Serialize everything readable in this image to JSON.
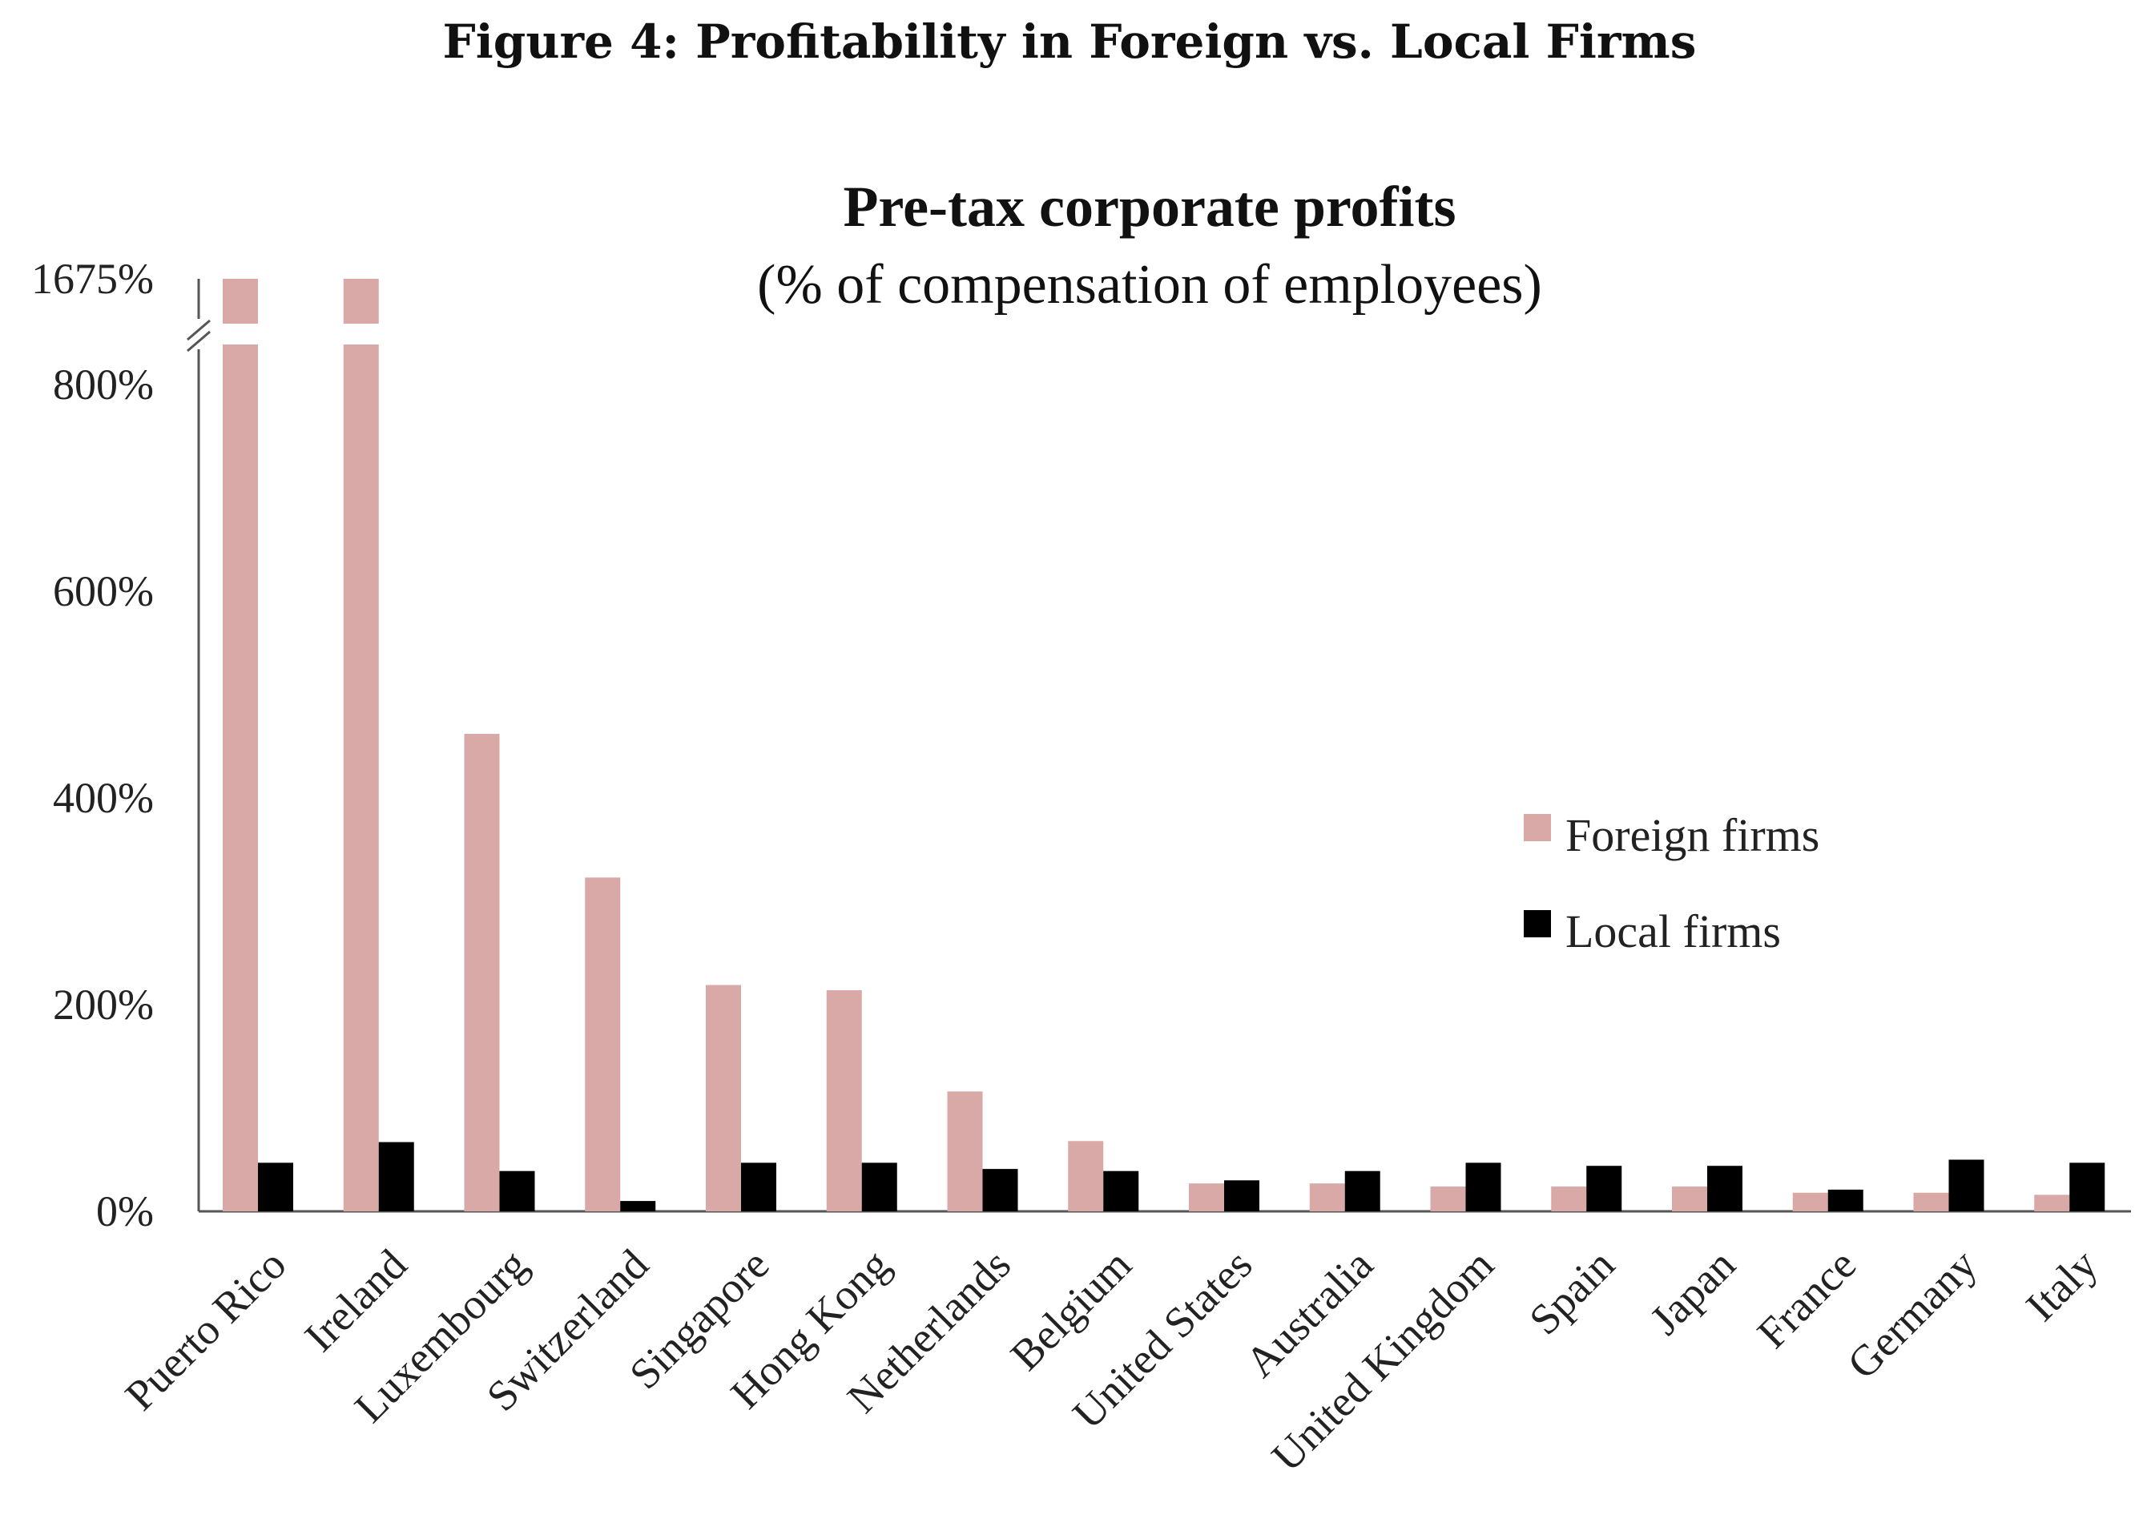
{
  "figure_title": "Figure 4: Profitability in Foreign vs. Local Firms",
  "colors": {
    "foreign": "#d8a9a6",
    "local": "#000000",
    "axis": "#555555"
  },
  "chart_data": {
    "type": "bar",
    "title": "Pre-tax corporate profits",
    "subtitle": "(% of compensation of employees)",
    "xlabel": "",
    "ylabel": "",
    "ylim": [
      0,
      1675
    ],
    "axis_break": {
      "below": 800,
      "resumes_at": 1675
    },
    "yticks": [
      0,
      200,
      400,
      600,
      800,
      1675
    ],
    "ytick_labels": [
      "0%",
      "200%",
      "400%",
      "600%",
      "800%",
      "1675%"
    ],
    "categories": [
      "Puerto Rico",
      "Ireland",
      "Luxembourg",
      "Switzerland",
      "Singapore",
      "Hong Kong",
      "Netherlands",
      "Belgium",
      "United States",
      "Australia",
      "United Kingdom",
      "Spain",
      "Japan",
      "France",
      "Germany",
      "Italy"
    ],
    "series": [
      {
        "name": "Foreign firms",
        "values": [
          1675,
          805,
          462,
          323,
          219,
          214,
          116,
          68,
          27,
          27,
          24,
          24,
          24,
          18,
          18,
          16
        ]
      },
      {
        "name": "Local firms",
        "values": [
          47,
          67,
          39,
          10,
          47,
          47,
          41,
          39,
          30,
          39,
          47,
          44,
          44,
          21,
          50,
          47
        ]
      }
    ],
    "legend": {
      "position": "right"
    },
    "grid": false
  }
}
